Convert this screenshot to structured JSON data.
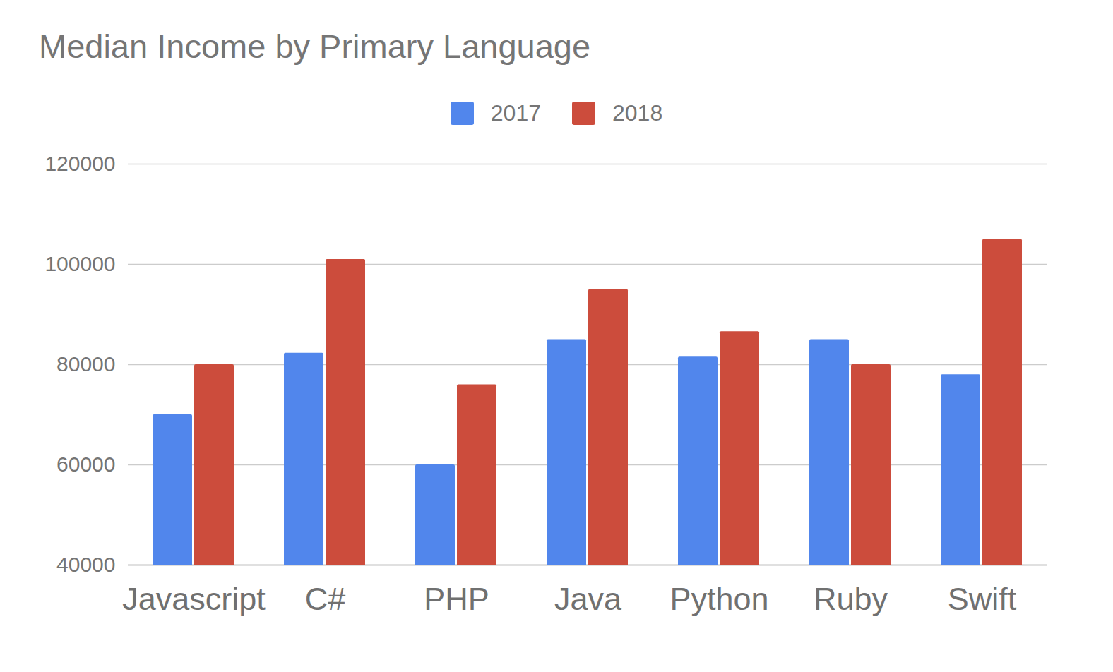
{
  "chart_data": {
    "type": "bar",
    "title": "Median Income by Primary Language",
    "categories": [
      "Javascript",
      "C#",
      "PHP",
      "Java",
      "Python",
      "Ruby",
      "Swift"
    ],
    "series": [
      {
        "name": "2017",
        "color": "#5186ec",
        "values": [
          70000,
          82300,
          60000,
          85000,
          81500,
          85000,
          78000
        ]
      },
      {
        "name": "2018",
        "color": "#cc4c3c",
        "values": [
          80000,
          101000,
          76000,
          95000,
          86600,
          80000,
          105000
        ]
      }
    ],
    "ylim": [
      40000,
      120000
    ],
    "yticks": [
      40000,
      60000,
      80000,
      100000,
      120000
    ],
    "grid": true,
    "legend": "top"
  }
}
